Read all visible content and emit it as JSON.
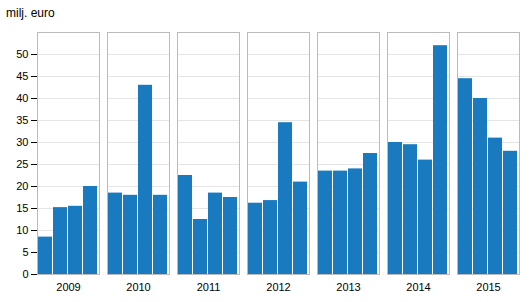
{
  "chart_data": {
    "type": "bar",
    "ylabel": "milj. euro",
    "categories": [
      "2009",
      "2010",
      "2011",
      "2012",
      "2013",
      "2014",
      "2015"
    ],
    "series": [
      {
        "color": "#1a7abf",
        "values": [
          8.5,
          18.5,
          22.5,
          16.2,
          23.5,
          30.0,
          44.5
        ]
      },
      {
        "color": "#1a7abf",
        "values": [
          15.2,
          18.0,
          12.5,
          16.8,
          23.5,
          29.5,
          40.0
        ]
      },
      {
        "color": "#1a7abf",
        "values": [
          15.5,
          43.0,
          18.5,
          34.5,
          24.0,
          26.0,
          31.0
        ]
      },
      {
        "color": "#1a7abf",
        "values": [
          20.0,
          18.0,
          17.5,
          21.0,
          27.5,
          52.0,
          28.0
        ]
      }
    ],
    "ylim": [
      0,
      55
    ],
    "yticks": [
      0,
      5,
      10,
      15,
      20,
      25,
      30,
      35,
      40,
      45,
      50
    ],
    "grid": true
  }
}
